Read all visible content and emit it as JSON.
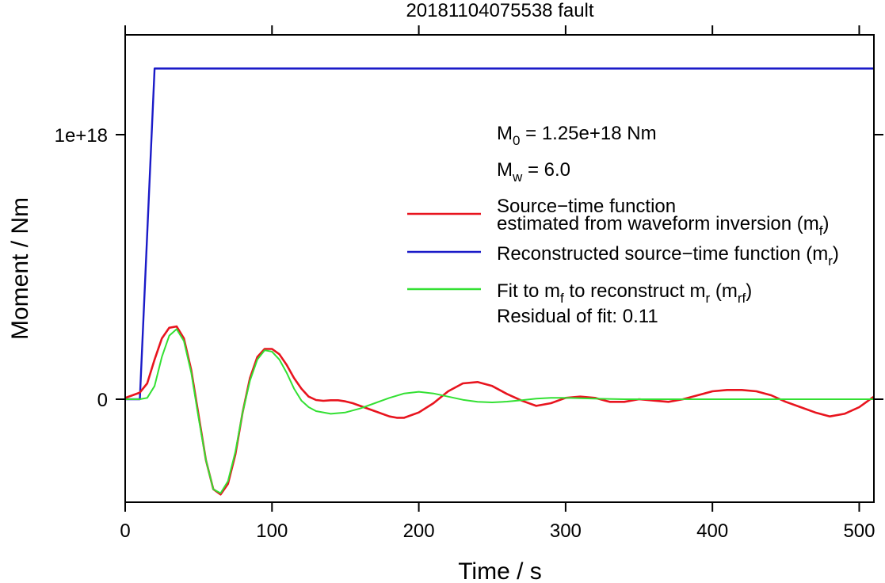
{
  "chart_data": {
    "type": "line",
    "title": "20181104075538 fault",
    "xlabel": "Time / s",
    "ylabel": "Moment / Nm",
    "xlim": [
      0,
      510
    ],
    "ylim": [
      -3.9e+17,
      1.4e+18
    ],
    "x_ticks": [
      0,
      100,
      200,
      300,
      400,
      500
    ],
    "x_tick_labels": [
      "0",
      "100",
      "200",
      "300",
      "400",
      "500"
    ],
    "y_ticks": [
      0,
      1e+18
    ],
    "y_tick_labels": [
      "0",
      "1e+18"
    ],
    "grid": false,
    "legend_position": "right",
    "annotations": {
      "m0": {
        "prefix": "M",
        "sub": "0",
        "text": " = 1.25e+18 Nm"
      },
      "mw": {
        "prefix": "M",
        "sub": "w",
        "text": " = 6.0"
      },
      "residual": "Residual of fit: 0.11"
    },
    "legend": [
      {
        "color": "#e8141e",
        "parts": [
          {
            "text": "Source−time function"
          },
          {
            "text": "estimated from waveform inversion (m"
          },
          {
            "sub": "f"
          },
          {
            "text": ")"
          }
        ]
      },
      {
        "color": "#1a1ac8",
        "parts": [
          {
            "text": "Reconstructed source−time function (m"
          },
          {
            "sub": "r"
          },
          {
            "text": ")"
          }
        ]
      },
      {
        "color": "#33e033",
        "parts": [
          {
            "text": "Fit to m"
          },
          {
            "sub": "f"
          },
          {
            "text": " to reconstruct m"
          },
          {
            "sub": "r"
          },
          {
            "text": " (m"
          },
          {
            "sub": "rf"
          },
          {
            "text": ")"
          }
        ]
      }
    ],
    "series": [
      {
        "color": "#1a1ac8",
        "x": [
          0,
          10,
          20,
          510
        ],
        "y": [
          0,
          0,
          1.25e+18,
          1.25e+18
        ]
      },
      {
        "color": "#e8141e",
        "x": [
          0,
          5,
          10,
          15,
          20,
          25,
          30,
          35,
          40,
          45,
          50,
          55,
          60,
          65,
          70,
          75,
          80,
          85,
          90,
          95,
          100,
          105,
          110,
          115,
          120,
          125,
          130,
          135,
          140,
          145,
          150,
          155,
          160,
          170,
          180,
          185,
          190,
          200,
          210,
          220,
          230,
          240,
          250,
          260,
          270,
          280,
          290,
          300,
          310,
          320,
          330,
          340,
          350,
          360,
          370,
          380,
          390,
          400,
          410,
          420,
          430,
          440,
          450,
          460,
          470,
          480,
          490,
          500,
          510
        ],
        "y": [
          5000000000000000.0,
          1.5e+16,
          2.5e+16,
          6e+16,
          1.5e+17,
          2.3e+17,
          2.7e+17,
          2.75e+17,
          2.3e+17,
          1.1e+17,
          -6e+16,
          -2.3e+17,
          -3.4e+17,
          -3.6e+17,
          -3.2e+17,
          -2.1e+17,
          -5e+16,
          8e+16,
          1.6e+17,
          1.9e+17,
          1.9e+17,
          1.7e+17,
          1.3e+17,
          8e+16,
          4e+16,
          1e+16,
          -3000000000000000.0,
          -6000000000000000.0,
          -4000000000000000.0,
          -4000000000000000.0,
          -8000000000000000.0,
          -1.5e+16,
          -2.5e+16,
          -4.5e+16,
          -6.5e+16,
          -7e+16,
          -7e+16,
          -5e+16,
          -1.5e+16,
          3e+16,
          6e+16,
          6.5e+16,
          5e+16,
          2e+16,
          -5000000000000000.0,
          -2.5e+16,
          -1.5e+16,
          5000000000000000.0,
          1e+16,
          5000000000000000.0,
          -1e+16,
          -1e+16,
          0.0,
          -5000000000000000.0,
          -1e+16,
          0.0,
          1.5e+16,
          3e+16,
          3.5e+16,
          3.5e+16,
          3e+16,
          1.5e+16,
          -1e+16,
          -3e+16,
          -5e+16,
          -6.5e+16,
          -5.5e+16,
          -3e+16,
          1e+16
        ]
      },
      {
        "color": "#33e033",
        "x": [
          0,
          5,
          10,
          15,
          20,
          25,
          30,
          35,
          40,
          45,
          50,
          55,
          60,
          65,
          70,
          75,
          80,
          85,
          90,
          95,
          100,
          105,
          110,
          115,
          120,
          125,
          130,
          140,
          150,
          160,
          170,
          180,
          190,
          200,
          210,
          220,
          230,
          240,
          250,
          260,
          270,
          280,
          290,
          300,
          320,
          340,
          360,
          380,
          400,
          450,
          510
        ],
        "y": [
          0,
          0,
          0,
          5000000000000000.0,
          5e+16,
          1.6e+17,
          2.4e+17,
          2.65e+17,
          2.2e+17,
          1e+17,
          -7e+16,
          -2.3e+17,
          -3.4e+17,
          -3.55e+17,
          -3.1e+17,
          -2e+17,
          -5e+16,
          7e+16,
          1.5e+17,
          1.85e+17,
          1.8e+17,
          1.5e+17,
          1e+17,
          4e+16,
          -5000000000000000.0,
          -3e+16,
          -4.5e+16,
          -5.5e+16,
          -5e+16,
          -3.5e+16,
          -1.5e+16,
          5000000000000000.0,
          2.2e+16,
          2.8e+16,
          2.2e+16,
          1e+16,
          -2000000000000000.0,
          -1e+16,
          -1.2e+16,
          -9000000000000000.0,
          -4000000000000000.0,
          2000000000000000.0,
          5000000000000000.0,
          5000000000000000.0,
          2000000000000000.0,
          0.0,
          0.0,
          0.0,
          0.0,
          0.0,
          0.0
        ]
      }
    ]
  }
}
